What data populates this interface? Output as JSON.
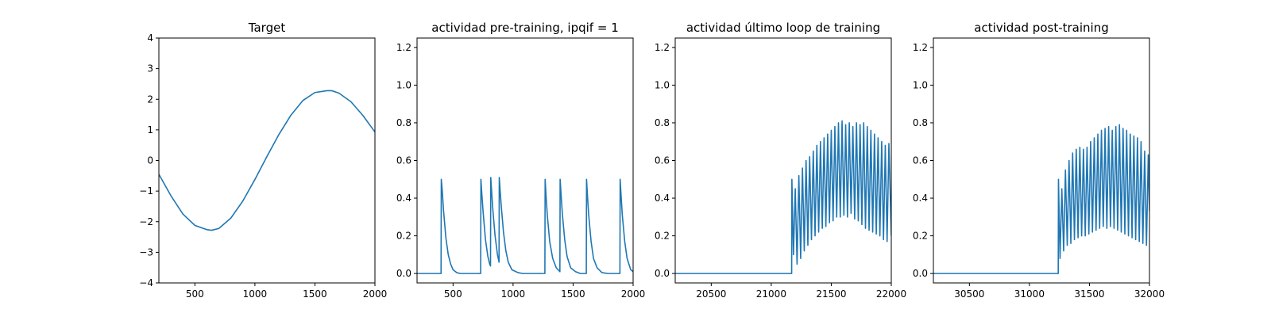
{
  "chart_data": [
    {
      "type": "line",
      "title": "Target",
      "xlim": [
        200,
        2000
      ],
      "ylim": [
        -4,
        4
      ],
      "xticks": [
        500,
        1000,
        1500,
        2000
      ],
      "yticks": [
        -4,
        -3,
        -2,
        -1,
        0,
        1,
        2,
        3,
        4
      ],
      "series": [
        {
          "x": [
            200,
            300,
            400,
            500,
            600,
            640,
            700,
            800,
            900,
            1000,
            1100,
            1200,
            1300,
            1400,
            1500,
            1600,
            1640,
            1700,
            1800,
            1900,
            2000
          ],
          "y": [
            -0.45,
            -1.15,
            -1.75,
            -2.12,
            -2.26,
            -2.28,
            -2.22,
            -1.88,
            -1.32,
            -0.62,
            0.13,
            0.85,
            1.48,
            1.96,
            2.22,
            2.28,
            2.28,
            2.2,
            1.92,
            1.47,
            0.93
          ]
        }
      ],
      "color": "#1f77b4",
      "grid": false
    },
    {
      "type": "line",
      "title": "actividad pre-training, ipqif = 1",
      "xlim": [
        200,
        2000
      ],
      "ylim": [
        -0.05,
        1.25
      ],
      "xticks": [
        500,
        1000,
        1500,
        2000
      ],
      "yticks": [
        0.0,
        0.2,
        0.4,
        0.6,
        0.8,
        1.0,
        1.2
      ],
      "series": [
        {
          "x": [
            200,
            400,
            402,
            410,
            420,
            440,
            460,
            480,
            500,
            530,
            560,
            600,
            730,
            732,
            740,
            750,
            770,
            790,
            805,
            812,
            814,
            820,
            830,
            850,
            870,
            883,
            885,
            890,
            900,
            920,
            940,
            960,
            990,
            1040,
            1080,
            1150,
            1265,
            1267,
            1275,
            1285,
            1305,
            1330,
            1360,
            1390,
            1392,
            1400,
            1410,
            1430,
            1450,
            1480,
            1520,
            1560,
            1610,
            1612,
            1620,
            1630,
            1650,
            1670,
            1700,
            1740,
            1790,
            1840,
            1890,
            1892,
            1900,
            1910,
            1930,
            1950,
            1980,
            2000
          ],
          "y": [
            0.0,
            0.0,
            0.5,
            0.44,
            0.34,
            0.19,
            0.1,
            0.05,
            0.02,
            0.005,
            0.0,
            0.0,
            0.0,
            0.5,
            0.42,
            0.33,
            0.18,
            0.09,
            0.05,
            0.04,
            0.51,
            0.45,
            0.35,
            0.2,
            0.1,
            0.06,
            0.51,
            0.46,
            0.37,
            0.22,
            0.12,
            0.06,
            0.02,
            0.005,
            0.0,
            0.0,
            0.0,
            0.5,
            0.41,
            0.31,
            0.17,
            0.08,
            0.03,
            0.01,
            0.5,
            0.42,
            0.32,
            0.18,
            0.09,
            0.03,
            0.01,
            0.0,
            0.0,
            0.5,
            0.41,
            0.31,
            0.17,
            0.08,
            0.03,
            0.005,
            0.0,
            0.0,
            0.0,
            0.5,
            0.41,
            0.31,
            0.17,
            0.08,
            0.02,
            0.01
          ]
        }
      ],
      "color": "#1f77b4",
      "grid": false
    },
    {
      "type": "line",
      "title": "actividad último loop de training",
      "xlim": [
        20200,
        22000
      ],
      "ylim": [
        -0.05,
        1.25
      ],
      "xticks": [
        20500,
        21000,
        21500,
        22000
      ],
      "yticks": [
        0.0,
        0.2,
        0.4,
        0.6,
        0.8,
        1.0,
        1.2
      ],
      "series": [
        {
          "x": [
            20200,
            20400,
            20600,
            20800,
            21000,
            21170,
            21172,
            21185,
            21200,
            21215,
            21230,
            21245,
            21260,
            21275,
            21290,
            21305,
            21320,
            21335,
            21350,
            21365,
            21380,
            21395,
            21410,
            21425,
            21440,
            21455,
            21470,
            21485,
            21500,
            21515,
            21530,
            21545,
            21560,
            21575,
            21590,
            21605,
            21620,
            21635,
            21650,
            21665,
            21680,
            21695,
            21710,
            21725,
            21740,
            21755,
            21770,
            21785,
            21800,
            21815,
            21830,
            21845,
            21860,
            21875,
            21890,
            21905,
            21920,
            21935,
            21950,
            21965,
            21980,
            22000
          ],
          "y": [
            0.0,
            0.0,
            0.0,
            0.0,
            0.0,
            0.0,
            0.5,
            0.1,
            0.45,
            0.05,
            0.52,
            0.08,
            0.56,
            0.12,
            0.6,
            0.15,
            0.62,
            0.18,
            0.65,
            0.2,
            0.68,
            0.22,
            0.7,
            0.24,
            0.72,
            0.25,
            0.74,
            0.27,
            0.76,
            0.28,
            0.78,
            0.3,
            0.8,
            0.3,
            0.81,
            0.31,
            0.79,
            0.3,
            0.8,
            0.32,
            0.78,
            0.29,
            0.8,
            0.28,
            0.79,
            0.26,
            0.8,
            0.24,
            0.78,
            0.23,
            0.76,
            0.22,
            0.74,
            0.21,
            0.72,
            0.2,
            0.7,
            0.18,
            0.68,
            0.17,
            0.69,
            0.2
          ]
        }
      ],
      "color": "#1f77b4",
      "grid": false
    },
    {
      "type": "line",
      "title": "actividad post-training",
      "xlim": [
        30200,
        32000
      ],
      "ylim": [
        -0.05,
        1.25
      ],
      "xticks": [
        30500,
        31000,
        31500,
        32000
      ],
      "yticks": [
        0.0,
        0.2,
        0.4,
        0.6,
        0.8,
        1.0,
        1.2
      ],
      "series": [
        {
          "x": [
            30200,
            30400,
            30600,
            30800,
            31000,
            31240,
            31242,
            31255,
            31270,
            31285,
            31300,
            31315,
            31330,
            31345,
            31360,
            31375,
            31390,
            31405,
            31420,
            31435,
            31450,
            31465,
            31480,
            31495,
            31510,
            31525,
            31540,
            31555,
            31570,
            31585,
            31600,
            31615,
            31630,
            31645,
            31660,
            31675,
            31690,
            31705,
            31720,
            31735,
            31750,
            31765,
            31780,
            31795,
            31810,
            31825,
            31840,
            31855,
            31870,
            31885,
            31900,
            31915,
            31930,
            31945,
            31960,
            31975,
            31990,
            32000
          ],
          "y": [
            0.0,
            0.0,
            0.0,
            0.0,
            0.0,
            0.0,
            0.5,
            0.08,
            0.45,
            0.12,
            0.55,
            0.15,
            0.6,
            0.16,
            0.64,
            0.18,
            0.66,
            0.19,
            0.67,
            0.2,
            0.66,
            0.2,
            0.67,
            0.21,
            0.7,
            0.22,
            0.72,
            0.23,
            0.74,
            0.24,
            0.76,
            0.25,
            0.77,
            0.24,
            0.78,
            0.25,
            0.76,
            0.24,
            0.78,
            0.23,
            0.79,
            0.22,
            0.77,
            0.21,
            0.76,
            0.2,
            0.74,
            0.19,
            0.73,
            0.18,
            0.72,
            0.17,
            0.7,
            0.16,
            0.65,
            0.15,
            0.63,
            0.33
          ]
        }
      ],
      "color": "#1f77b4",
      "grid": false
    }
  ]
}
